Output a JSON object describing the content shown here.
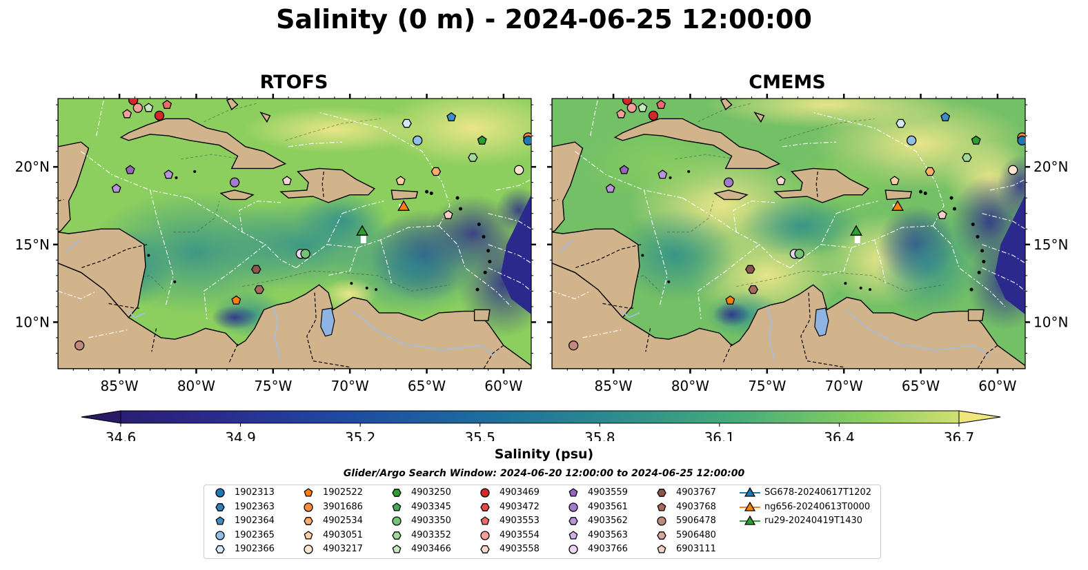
{
  "title": "Salinity (0 m) - 2024-06-25 12:00:00",
  "panels": [
    {
      "name": "RTOFS"
    },
    {
      "name": "CMEMS"
    }
  ],
  "map": {
    "lon_range": [
      -89,
      -58.2
    ],
    "lat_range": [
      7,
      24.4
    ],
    "lon_ticks": [
      "85°W",
      "80°W",
      "75°W",
      "70°W",
      "65°W",
      "60°W"
    ],
    "lat_ticks": [
      "20°N",
      "15°N",
      "10°N"
    ],
    "colors": {
      "land": "#d2b48c",
      "river": "#a6bddb",
      "deep": "#2a1a66",
      "contour": "#ffffff"
    }
  },
  "colorbar": {
    "ticks": [
      "34.6",
      "34.9",
      "35.2",
      "35.5",
      "35.8",
      "36.1",
      "36.4",
      "36.7"
    ],
    "label": "Salinity (psu)",
    "colors": [
      "#2a1a66",
      "#2b2a8c",
      "#1f4aa0",
      "#1d6a9e",
      "#2a8a8f",
      "#46ac7a",
      "#8ccf5e",
      "#f0e67c"
    ]
  },
  "search_window": "Glider/Argo Search Window: 2024-06-20 12:00:00 to 2024-06-25 12:00:00",
  "legend": [
    {
      "label": "1902313",
      "shape": "circle",
      "color": "#1f77b4"
    },
    {
      "label": "1902363",
      "shape": "hexagon",
      "color": "#2c82b8"
    },
    {
      "label": "1902364",
      "shape": "pentagon",
      "color": "#3d8ec8"
    },
    {
      "label": "1902365",
      "shape": "circle",
      "color": "#8fbfe6"
    },
    {
      "label": "1902366",
      "shape": "hexagon",
      "color": "#d6e8f7"
    },
    {
      "label": "1902522",
      "shape": "pentagon",
      "color": "#ff7f0e"
    },
    {
      "label": "3901686",
      "shape": "circle",
      "color": "#fd8d3c"
    },
    {
      "label": "4902534",
      "shape": "hexagon",
      "color": "#fdae6b"
    },
    {
      "label": "4903051",
      "shape": "pentagon",
      "color": "#fdd0a2"
    },
    {
      "label": "4903217",
      "shape": "circle",
      "color": "#fee6ce"
    },
    {
      "label": "4903250",
      "shape": "hexagon",
      "color": "#2ca02c"
    },
    {
      "label": "4903345",
      "shape": "pentagon",
      "color": "#41ab5d"
    },
    {
      "label": "4903350",
      "shape": "circle",
      "color": "#74c476"
    },
    {
      "label": "4903352",
      "shape": "hexagon",
      "color": "#a1d99b"
    },
    {
      "label": "4903466",
      "shape": "pentagon",
      "color": "#c7e9c0"
    },
    {
      "label": "4903469",
      "shape": "circle",
      "color": "#d62728"
    },
    {
      "label": "4903472",
      "shape": "hexagon",
      "color": "#e34a4a"
    },
    {
      "label": "4903553",
      "shape": "pentagon",
      "color": "#ef6a6a"
    },
    {
      "label": "4903554",
      "shape": "circle",
      "color": "#f4a09a"
    },
    {
      "label": "4903558",
      "shape": "hexagon",
      "color": "#fbd5d0"
    },
    {
      "label": "4903559",
      "shape": "pentagon",
      "color": "#9467bd"
    },
    {
      "label": "4903561",
      "shape": "circle",
      "color": "#a27cc8"
    },
    {
      "label": "4903562",
      "shape": "hexagon",
      "color": "#b894da"
    },
    {
      "label": "4903563",
      "shape": "pentagon",
      "color": "#d0b0ea"
    },
    {
      "label": "4903766",
      "shape": "circle",
      "color": "#ecd5f8"
    },
    {
      "label": "4903767",
      "shape": "hexagon",
      "color": "#8c564b"
    },
    {
      "label": "4903768",
      "shape": "pentagon",
      "color": "#a6695d"
    },
    {
      "label": "5906478",
      "shape": "circle",
      "color": "#c08a7e"
    },
    {
      "label": "5906480",
      "shape": "hexagon",
      "color": "#d6a99e"
    },
    {
      "label": "6903111",
      "shape": "pentagon",
      "color": "#f6cfc6"
    },
    {
      "label": "SG678-20240617T1202",
      "shape": "triangle-line",
      "color": "#1f77b4"
    },
    {
      "label": "ng656-20240613T0000",
      "shape": "triangle-line",
      "color": "#ff7f0e"
    },
    {
      "label": "ru29-20240419T1430",
      "shape": "triangle-line",
      "color": "#2ca02c"
    }
  ],
  "floats": [
    {
      "lon": -84.5,
      "lat": 23.4,
      "shape": "pentagon",
      "color": "#f4a09a"
    },
    {
      "lon": -83.8,
      "lat": 23.8,
      "shape": "circle",
      "color": "#f4a09a"
    },
    {
      "lon": -83.1,
      "lat": 23.8,
      "shape": "pentagon",
      "color": "#c7e9c0"
    },
    {
      "lon": -82.4,
      "lat": 23.3,
      "shape": "circle",
      "color": "#d62728"
    },
    {
      "lon": -81.9,
      "lat": 24.0,
      "shape": "pentagon",
      "color": "#ef6a6a"
    },
    {
      "lon": -84.1,
      "lat": 24.3,
      "shape": "circle",
      "color": "#d62728"
    },
    {
      "lon": -84.3,
      "lat": 19.8,
      "shape": "pentagon",
      "color": "#9467bd"
    },
    {
      "lon": -81.8,
      "lat": 19.5,
      "shape": "pentagon",
      "color": "#b894da"
    },
    {
      "lon": -85.2,
      "lat": 18.6,
      "shape": "pentagon",
      "color": "#b894da"
    },
    {
      "lon": -77.5,
      "lat": 19.0,
      "shape": "circle",
      "color": "#a27cc8"
    },
    {
      "lon": -74.1,
      "lat": 19.1,
      "shape": "pentagon",
      "color": "#fbd5d0"
    },
    {
      "lon": -76.1,
      "lat": 13.4,
      "shape": "hexagon",
      "color": "#8c564b"
    },
    {
      "lon": -75.9,
      "lat": 12.1,
      "shape": "hexagon",
      "color": "#a6695d"
    },
    {
      "lon": -77.4,
      "lat": 11.4,
      "shape": "pentagon",
      "color": "#ff7f0e"
    },
    {
      "lon": -73.2,
      "lat": 14.4,
      "shape": "circle",
      "color": "#ecd5f8"
    },
    {
      "lon": -72.9,
      "lat": 14.4,
      "shape": "circle",
      "color": "#74c476"
    },
    {
      "lon": -87.6,
      "lat": 8.5,
      "shape": "circle",
      "color": "#c08a7e"
    },
    {
      "lon": -66.3,
      "lat": 22.8,
      "shape": "hexagon",
      "color": "#d6e8f7"
    },
    {
      "lon": -63.4,
      "lat": 23.2,
      "shape": "pentagon",
      "color": "#3d8ec8"
    },
    {
      "lon": -65.6,
      "lat": 21.7,
      "shape": "circle",
      "color": "#8fbfe6"
    },
    {
      "lon": -61.4,
      "lat": 21.7,
      "shape": "pentagon",
      "color": "#2ca02c"
    },
    {
      "lon": -62.0,
      "lat": 20.6,
      "shape": "hexagon",
      "color": "#a1d99b"
    },
    {
      "lon": -64.4,
      "lat": 19.7,
      "shape": "hexagon",
      "color": "#fdae6b"
    },
    {
      "lon": -66.7,
      "lat": 19.1,
      "shape": "pentagon",
      "color": "#fdd0a2"
    },
    {
      "lon": -59.0,
      "lat": 19.8,
      "shape": "circle",
      "color": "#fee6ce"
    },
    {
      "lon": -58.4,
      "lat": 21.9,
      "shape": "circle",
      "color": "#fd8d3c"
    },
    {
      "lon": -58.4,
      "lat": 21.7,
      "shape": "circle",
      "color": "#1f77b4"
    },
    {
      "lon": -63.6,
      "lat": 16.9,
      "shape": "pentagon",
      "color": "#f6cfc6"
    }
  ],
  "gliders": [
    {
      "lon": -66.5,
      "lat": 17.4,
      "color": "#ff7f0e"
    },
    {
      "lon": -69.2,
      "lat": 15.8,
      "color": "#2ca02c"
    }
  ]
}
